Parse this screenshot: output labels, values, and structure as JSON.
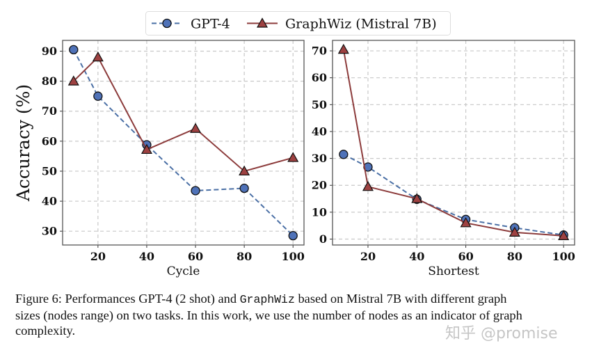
{
  "chart_data": [
    {
      "type": "line",
      "xlabel": "Cycle",
      "ylabel": "Accuracy (%)",
      "x": [
        10,
        20,
        40,
        60,
        80,
        100
      ],
      "xticks": [
        20,
        40,
        60,
        80,
        100
      ],
      "yticks": [
        30,
        40,
        50,
        60,
        70,
        80,
        90
      ],
      "xlim": [
        5.5,
        104.5
      ],
      "ylim": [
        25.4,
        93.6
      ],
      "grid": true,
      "series": [
        {
          "name": "GPT-4",
          "values": [
            90.5,
            75.0,
            58.8,
            43.5,
            44.3,
            28.5
          ]
        },
        {
          "name": "GraphWiz (Mistral 7B)",
          "values": [
            80.0,
            88.0,
            57.2,
            64.2,
            50.0,
            54.5
          ]
        }
      ]
    },
    {
      "type": "line",
      "xlabel": "Shortest",
      "ylabel": "",
      "x": [
        10,
        20,
        40,
        60,
        80,
        100
      ],
      "xticks": [
        20,
        40,
        60,
        80,
        100
      ],
      "yticks": [
        0,
        10,
        20,
        30,
        40,
        50,
        60,
        70
      ],
      "xlim": [
        5.5,
        104.5
      ],
      "ylim": [
        -2.2,
        73.9
      ],
      "grid": true,
      "series": [
        {
          "name": "GPT-4",
          "values": [
            31.5,
            26.8,
            14.8,
            7.3,
            4.2,
            1.5
          ]
        },
        {
          "name": "GraphWiz (Mistral 7B)",
          "values": [
            70.5,
            19.5,
            15.0,
            6.0,
            2.5,
            1.2
          ]
        }
      ]
    }
  ],
  "legend": {
    "placement": "top-center",
    "items": [
      {
        "label": "GPT-4",
        "marker": "circle",
        "line": "dashed",
        "color": "#4a6fa5",
        "fill": "#4f72b8"
      },
      {
        "label": "GraphWiz (Mistral 7B)",
        "marker": "triangle",
        "line": "solid",
        "color": "#8c3b3b",
        "fill": "#9e4141"
      }
    ]
  },
  "caption": {
    "line1_pre": "Figure 6: Performances GPT-4 (2 shot) and ",
    "line1_mono": "GraphWiz",
    "line1_post": " based on Mistral 7B with different graph",
    "line2": "sizes (nodes range) on two tasks. In this work, we use the number of nodes as an indicator of graph",
    "line3": "complexity."
  },
  "watermark": "知乎 @promise"
}
